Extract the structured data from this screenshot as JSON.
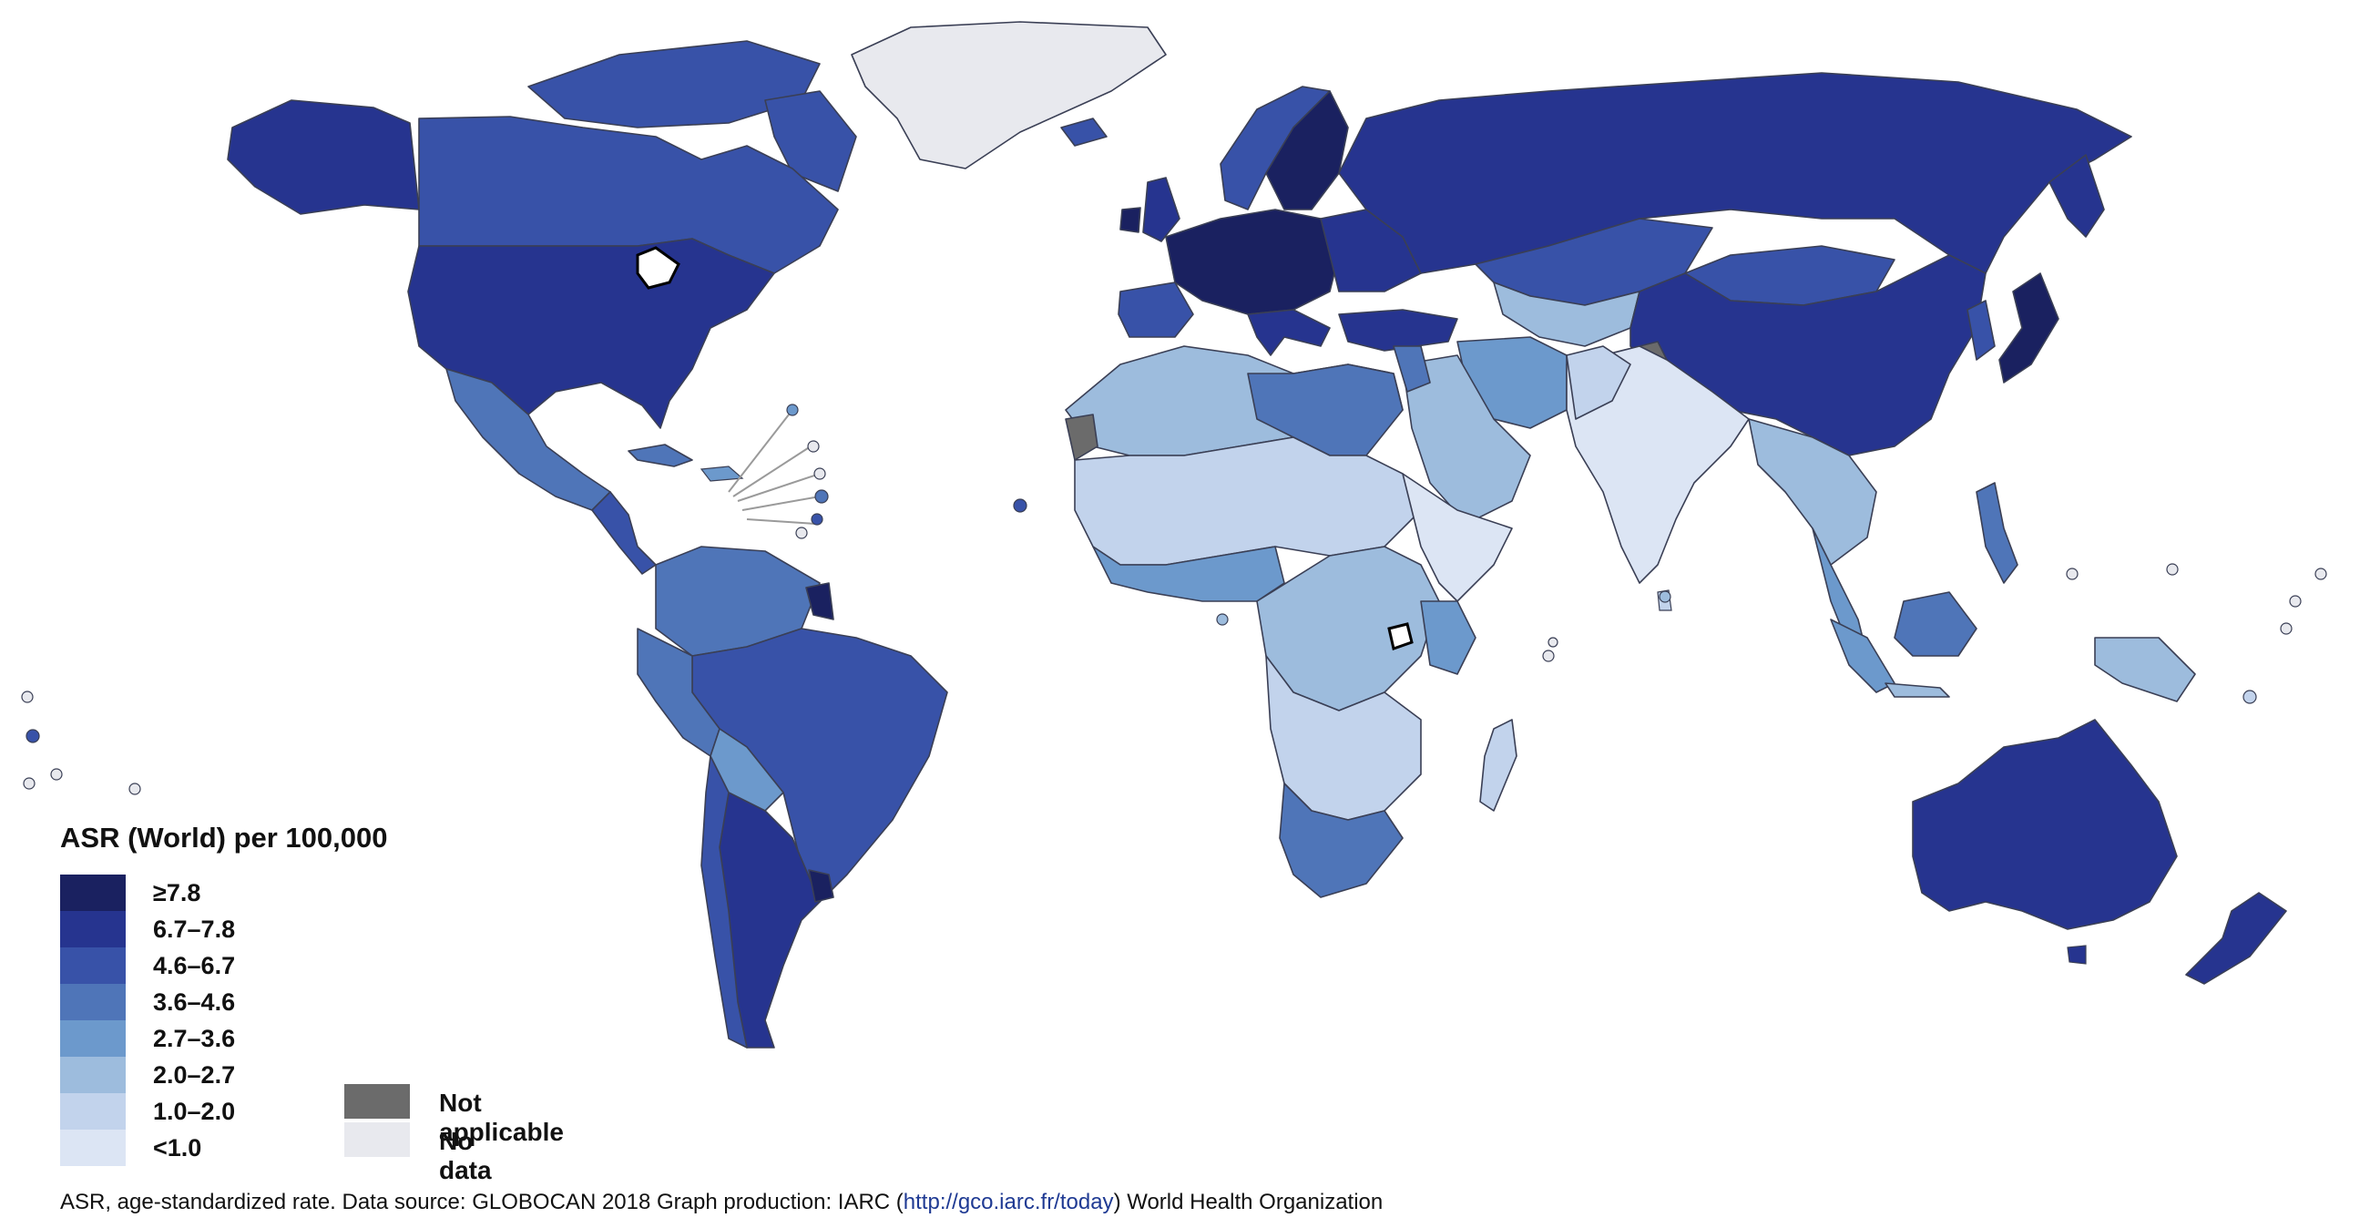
{
  "legend": {
    "title": "ASR (World) per 100,000",
    "classes": [
      {
        "label": "≥7.8",
        "color": "#1a2160"
      },
      {
        "label": "6.7–7.8",
        "color": "#26348f"
      },
      {
        "label": "4.6–6.7",
        "color": "#3852a8"
      },
      {
        "label": "3.6–4.6",
        "color": "#4f75b8"
      },
      {
        "label": "2.7–3.6",
        "color": "#6c99cc"
      },
      {
        "label": "2.0–2.7",
        "color": "#9dbcdd"
      },
      {
        "label": "1.0–2.0",
        "color": "#c2d3ec"
      },
      {
        "label": "<1.0",
        "color": "#dce5f4"
      }
    ],
    "not_applicable": {
      "label": "Not applicable",
      "color": "#6b6b6b"
    },
    "no_data": {
      "label": "No data",
      "color": "#e8e9ee"
    }
  },
  "footer": {
    "prefix": "ASR, age-standardized rate. Data source: GLOBOCAN 2018 Graph production: IARC (",
    "link": "http://gco.iarc.fr/today",
    "suffix": ") World Health Organization"
  }
}
